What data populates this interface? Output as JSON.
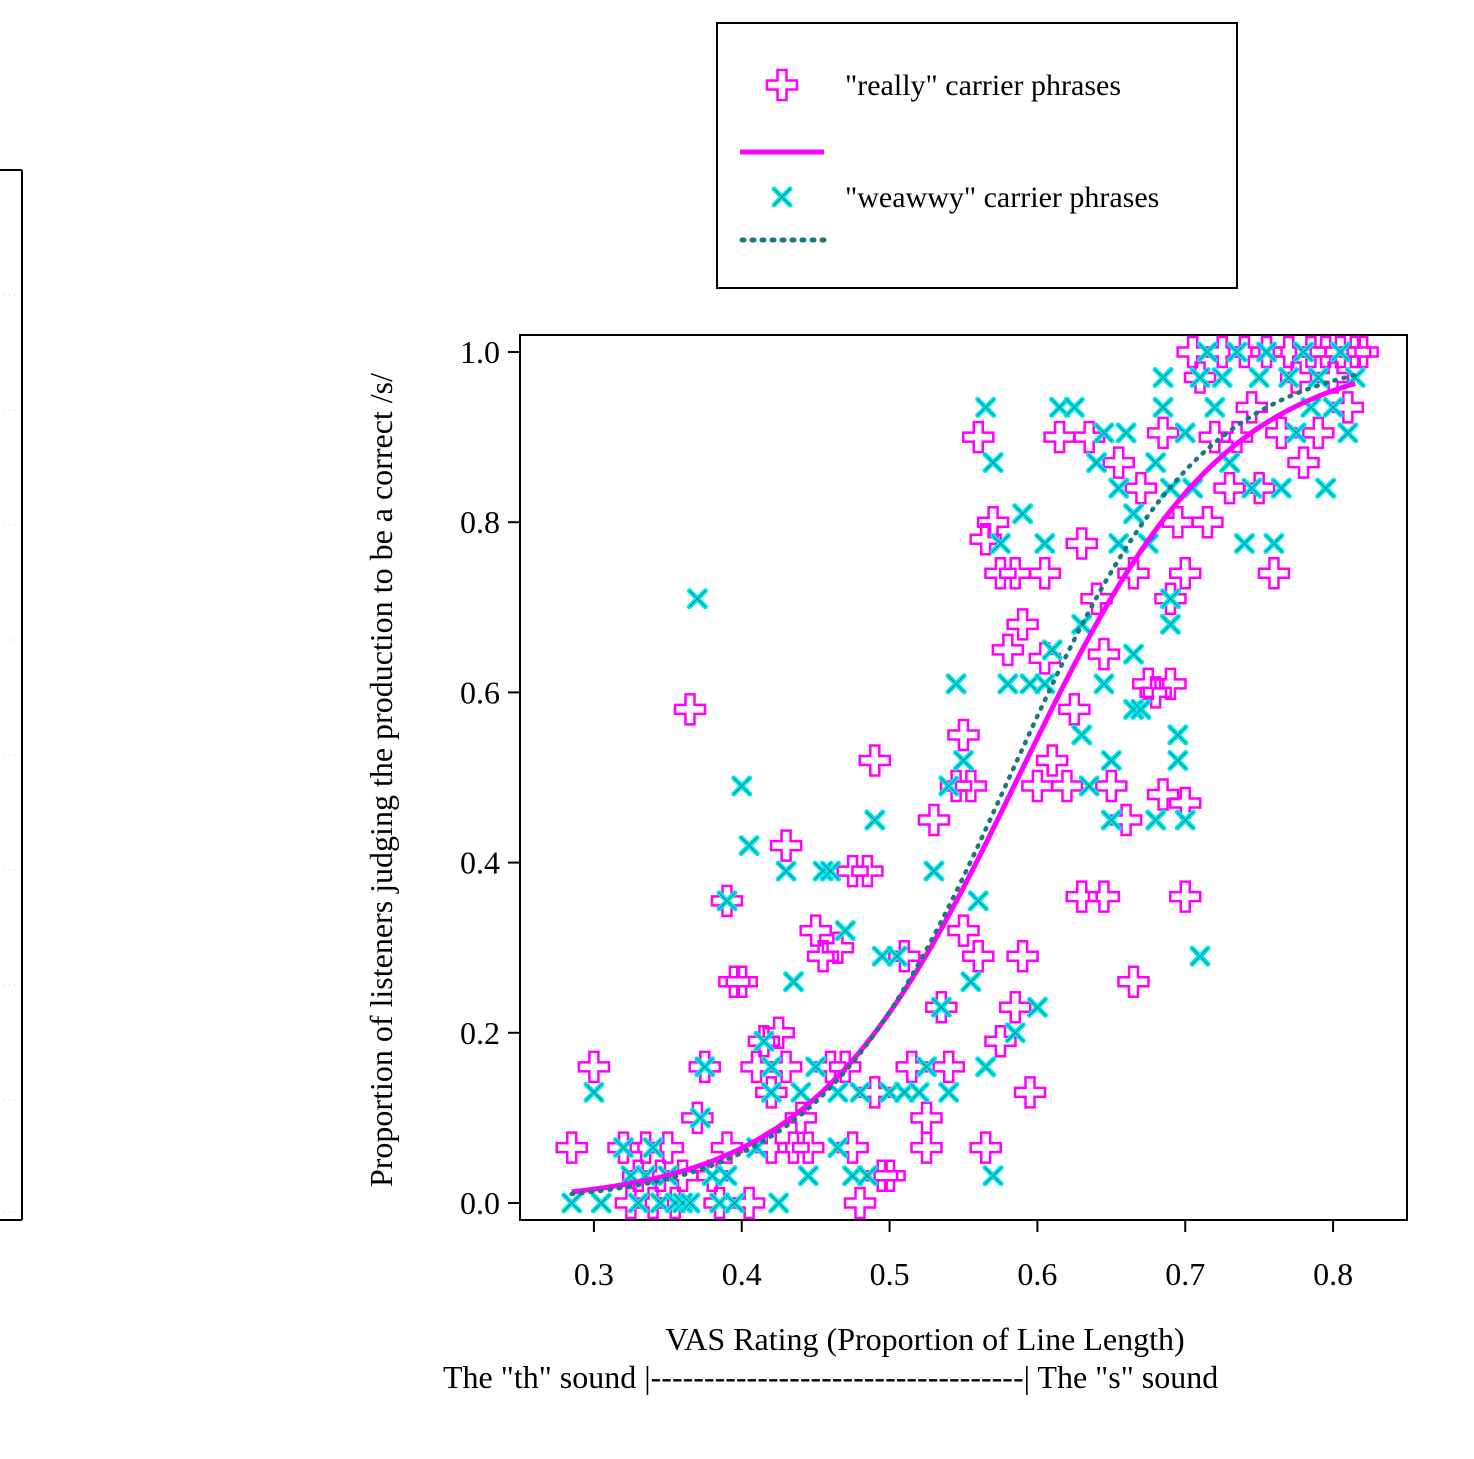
{
  "chart_data": {
    "type": "scatter",
    "title": "",
    "xlabel": "VAS Rating (Proportion of Line Length)",
    "xlabel_sub": "The \"th\" sound |-----------------------------------| The \"s\" sound",
    "ylabel": "Proportion of listeners judging the production to be a correct /s/",
    "xlim": [
      0.25,
      0.85
    ],
    "ylim": [
      -0.02,
      1.02
    ],
    "x_ticks": [
      0.3,
      0.4,
      0.5,
      0.6,
      0.7,
      0.8
    ],
    "x_tick_labels": [
      "0.3",
      "0.4",
      "0.5",
      "0.6",
      "0.7",
      "0.8"
    ],
    "y_ticks": [
      0.0,
      0.2,
      0.4,
      0.6,
      0.8,
      1.0
    ],
    "y_tick_labels": [
      "0.0",
      "0.2",
      "0.4",
      "0.6",
      "0.8",
      "1.0"
    ],
    "grid": false,
    "legend_position": "top",
    "legend": [
      {
        "label": "\"really\" carrier phrases",
        "marker": "open-cross",
        "color": "#ff00ff"
      },
      {
        "label": "",
        "line": "solid",
        "color": "#ff00ff"
      },
      {
        "label": "\"weawwy\" carrier phrases",
        "marker": "x",
        "color": "#00e5ee"
      },
      {
        "label": "",
        "line": "dotted",
        "color": "#1a7a7a"
      }
    ],
    "series": [
      {
        "marker": "open-cross",
        "color": "#ff00ff",
        "points": [
          [
            0.285,
            0.065
          ],
          [
            0.3,
            0.16
          ],
          [
            0.32,
            0.065
          ],
          [
            0.325,
            0.0
          ],
          [
            0.33,
            0.032
          ],
          [
            0.335,
            0.065
          ],
          [
            0.34,
            0.0
          ],
          [
            0.345,
            0.032
          ],
          [
            0.35,
            0.065
          ],
          [
            0.355,
            0.0
          ],
          [
            0.36,
            0.032
          ],
          [
            0.365,
            0.58
          ],
          [
            0.37,
            0.1
          ],
          [
            0.375,
            0.16
          ],
          [
            0.38,
            0.032
          ],
          [
            0.385,
            0.0
          ],
          [
            0.39,
            0.355
          ],
          [
            0.39,
            0.065
          ],
          [
            0.395,
            0.26
          ],
          [
            0.4,
            0.26
          ],
          [
            0.405,
            0.0
          ],
          [
            0.41,
            0.16
          ],
          [
            0.415,
            0.19
          ],
          [
            0.42,
            0.13
          ],
          [
            0.42,
            0.065
          ],
          [
            0.425,
            0.2
          ],
          [
            0.43,
            0.42
          ],
          [
            0.43,
            0.16
          ],
          [
            0.435,
            0.065
          ],
          [
            0.44,
            0.1
          ],
          [
            0.445,
            0.065
          ],
          [
            0.45,
            0.32
          ],
          [
            0.455,
            0.29
          ],
          [
            0.46,
            0.16
          ],
          [
            0.465,
            0.3
          ],
          [
            0.47,
            0.16
          ],
          [
            0.475,
            0.065
          ],
          [
            0.475,
            0.39
          ],
          [
            0.48,
            0.0
          ],
          [
            0.485,
            0.39
          ],
          [
            0.49,
            0.52
          ],
          [
            0.49,
            0.13
          ],
          [
            0.495,
            0.032
          ],
          [
            0.5,
            0.032
          ],
          [
            0.51,
            0.29
          ],
          [
            0.515,
            0.16
          ],
          [
            0.525,
            0.065
          ],
          [
            0.525,
            0.1
          ],
          [
            0.53,
            0.45
          ],
          [
            0.535,
            0.23
          ],
          [
            0.54,
            0.16
          ],
          [
            0.545,
            0.49
          ],
          [
            0.55,
            0.32
          ],
          [
            0.55,
            0.55
          ],
          [
            0.555,
            0.49
          ],
          [
            0.56,
            0.29
          ],
          [
            0.56,
            0.9
          ],
          [
            0.565,
            0.78
          ],
          [
            0.565,
            0.065
          ],
          [
            0.57,
            0.8
          ],
          [
            0.575,
            0.74
          ],
          [
            0.575,
            0.19
          ],
          [
            0.58,
            0.65
          ],
          [
            0.585,
            0.74
          ],
          [
            0.585,
            0.23
          ],
          [
            0.59,
            0.29
          ],
          [
            0.59,
            0.68
          ],
          [
            0.595,
            0.13
          ],
          [
            0.6,
            0.49
          ],
          [
            0.605,
            0.74
          ],
          [
            0.605,
            0.64
          ],
          [
            0.61,
            0.52
          ],
          [
            0.615,
            0.9
          ],
          [
            0.62,
            0.49
          ],
          [
            0.625,
            0.58
          ],
          [
            0.63,
            0.775
          ],
          [
            0.63,
            0.36
          ],
          [
            0.635,
            0.9
          ],
          [
            0.64,
            0.71
          ],
          [
            0.645,
            0.645
          ],
          [
            0.645,
            0.36
          ],
          [
            0.65,
            0.49
          ],
          [
            0.655,
            0.87
          ],
          [
            0.66,
            0.45
          ],
          [
            0.665,
            0.74
          ],
          [
            0.665,
            0.26
          ],
          [
            0.67,
            0.84
          ],
          [
            0.675,
            0.61
          ],
          [
            0.68,
            0.6
          ],
          [
            0.685,
            0.48
          ],
          [
            0.685,
            0.905
          ],
          [
            0.69,
            0.71
          ],
          [
            0.69,
            0.61
          ],
          [
            0.695,
            0.8
          ],
          [
            0.7,
            0.47
          ],
          [
            0.7,
            0.74
          ],
          [
            0.7,
            0.36
          ],
          [
            0.705,
            1.0
          ],
          [
            0.71,
            0.97
          ],
          [
            0.715,
            0.8
          ],
          [
            0.72,
            0.9
          ],
          [
            0.725,
            1.0
          ],
          [
            0.73,
            0.84
          ],
          [
            0.735,
            0.9
          ],
          [
            0.74,
            1.0
          ],
          [
            0.745,
            0.935
          ],
          [
            0.75,
            0.84
          ],
          [
            0.755,
            1.0
          ],
          [
            0.76,
            0.74
          ],
          [
            0.765,
            0.905
          ],
          [
            0.77,
            1.0
          ],
          [
            0.775,
            0.97
          ],
          [
            0.78,
            0.87
          ],
          [
            0.785,
            1.0
          ],
          [
            0.79,
            0.905
          ],
          [
            0.795,
            1.0
          ],
          [
            0.8,
            0.97
          ],
          [
            0.805,
            1.0
          ],
          [
            0.81,
            0.935
          ],
          [
            0.815,
            1.0
          ],
          [
            0.82,
            1.0
          ]
        ]
      },
      {
        "marker": "x",
        "color": "#00e5ee",
        "points": [
          [
            0.285,
            0.0
          ],
          [
            0.3,
            0.13
          ],
          [
            0.305,
            0.0
          ],
          [
            0.32,
            0.065
          ],
          [
            0.325,
            0.032
          ],
          [
            0.33,
            0.0
          ],
          [
            0.335,
            0.032
          ],
          [
            0.34,
            0.065
          ],
          [
            0.345,
            0.0
          ],
          [
            0.35,
            0.032
          ],
          [
            0.355,
            0.0
          ],
          [
            0.36,
            0.0
          ],
          [
            0.365,
            0.0
          ],
          [
            0.37,
            0.71
          ],
          [
            0.372,
            0.1
          ],
          [
            0.375,
            0.16
          ],
          [
            0.38,
            0.032
          ],
          [
            0.385,
            0.0
          ],
          [
            0.39,
            0.032
          ],
          [
            0.39,
            0.355
          ],
          [
            0.395,
            0.0
          ],
          [
            0.4,
            0.49
          ],
          [
            0.405,
            0.42
          ],
          [
            0.41,
            0.065
          ],
          [
            0.415,
            0.19
          ],
          [
            0.42,
            0.16
          ],
          [
            0.42,
            0.13
          ],
          [
            0.425,
            0.0
          ],
          [
            0.43,
            0.39
          ],
          [
            0.435,
            0.26
          ],
          [
            0.44,
            0.13
          ],
          [
            0.445,
            0.032
          ],
          [
            0.45,
            0.16
          ],
          [
            0.455,
            0.39
          ],
          [
            0.46,
            0.39
          ],
          [
            0.465,
            0.065
          ],
          [
            0.465,
            0.13
          ],
          [
            0.47,
            0.32
          ],
          [
            0.475,
            0.032
          ],
          [
            0.48,
            0.13
          ],
          [
            0.485,
            0.032
          ],
          [
            0.49,
            0.45
          ],
          [
            0.495,
            0.29
          ],
          [
            0.5,
            0.13
          ],
          [
            0.505,
            0.29
          ],
          [
            0.51,
            0.13
          ],
          [
            0.52,
            0.13
          ],
          [
            0.525,
            0.16
          ],
          [
            0.53,
            0.39
          ],
          [
            0.535,
            0.23
          ],
          [
            0.54,
            0.13
          ],
          [
            0.54,
            0.49
          ],
          [
            0.545,
            0.61
          ],
          [
            0.55,
            0.52
          ],
          [
            0.555,
            0.26
          ],
          [
            0.56,
            0.355
          ],
          [
            0.565,
            0.16
          ],
          [
            0.565,
            0.935
          ],
          [
            0.57,
            0.87
          ],
          [
            0.57,
            0.032
          ],
          [
            0.575,
            0.775
          ],
          [
            0.58,
            0.61
          ],
          [
            0.585,
            0.2
          ],
          [
            0.59,
            0.81
          ],
          [
            0.595,
            0.61
          ],
          [
            0.6,
            0.23
          ],
          [
            0.605,
            0.61
          ],
          [
            0.605,
            0.775
          ],
          [
            0.61,
            0.65
          ],
          [
            0.615,
            0.935
          ],
          [
            0.625,
            0.935
          ],
          [
            0.63,
            0.68
          ],
          [
            0.63,
            0.55
          ],
          [
            0.635,
            0.49
          ],
          [
            0.64,
            0.87
          ],
          [
            0.645,
            0.905
          ],
          [
            0.645,
            0.61
          ],
          [
            0.65,
            0.52
          ],
          [
            0.65,
            0.45
          ],
          [
            0.655,
            0.84
          ],
          [
            0.655,
            0.775
          ],
          [
            0.66,
            0.905
          ],
          [
            0.665,
            0.58
          ],
          [
            0.665,
            0.81
          ],
          [
            0.665,
            0.645
          ],
          [
            0.67,
            0.58
          ],
          [
            0.675,
            0.775
          ],
          [
            0.68,
            0.45
          ],
          [
            0.68,
            0.87
          ],
          [
            0.685,
            0.97
          ],
          [
            0.685,
            0.935
          ],
          [
            0.69,
            0.84
          ],
          [
            0.69,
            0.71
          ],
          [
            0.69,
            0.68
          ],
          [
            0.695,
            0.55
          ],
          [
            0.695,
            0.52
          ],
          [
            0.7,
            0.905
          ],
          [
            0.7,
            0.45
          ],
          [
            0.705,
            0.84
          ],
          [
            0.71,
            0.29
          ],
          [
            0.71,
            0.97
          ],
          [
            0.715,
            1.0
          ],
          [
            0.72,
            0.935
          ],
          [
            0.725,
            0.97
          ],
          [
            0.73,
            0.87
          ],
          [
            0.735,
            1.0
          ],
          [
            0.74,
            0.775
          ],
          [
            0.745,
            0.84
          ],
          [
            0.75,
            0.97
          ],
          [
            0.755,
            1.0
          ],
          [
            0.76,
            0.775
          ],
          [
            0.765,
            0.84
          ],
          [
            0.77,
            0.97
          ],
          [
            0.775,
            0.905
          ],
          [
            0.78,
            1.0
          ],
          [
            0.785,
            0.935
          ],
          [
            0.79,
            0.97
          ],
          [
            0.795,
            0.84
          ],
          [
            0.8,
            0.935
          ],
          [
            0.805,
            1.0
          ],
          [
            0.81,
            0.905
          ],
          [
            0.815,
            0.97
          ]
        ]
      }
    ],
    "fit_lines": [
      {
        "style": "solid",
        "color": "#ff00ff",
        "model": "logistic",
        "midpoint": 0.587,
        "slope": 14.3,
        "x_range": [
          0.285,
          0.815
        ]
      },
      {
        "style": "dotted",
        "color": "#1a7a7a",
        "model": "logistic",
        "midpoint": 0.581,
        "slope": 15.3,
        "x_range": [
          0.285,
          0.815
        ]
      }
    ]
  }
}
